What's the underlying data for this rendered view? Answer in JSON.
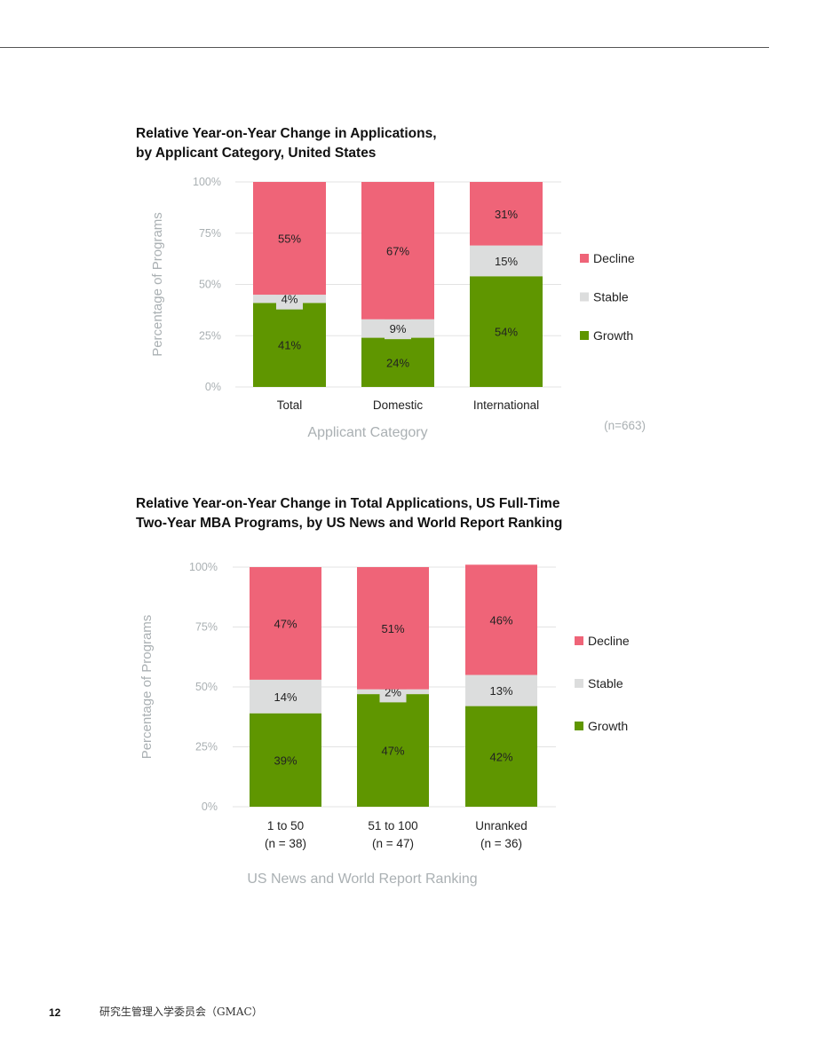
{
  "page": {
    "number": "12",
    "footer_org": "研究生管理入学委员会（GMAC）"
  },
  "colors": {
    "decline": "#EF6478",
    "stable": "#DCDDDD",
    "growth": "#5F9600",
    "grid": "#E3E3E3",
    "axis_text": "#AAB0B3"
  },
  "chart_data": [
    {
      "type": "bar",
      "stacked": true,
      "title_lines": [
        "Relative Year-on-Year Change in Applications,",
        "by Applicant Category, United States"
      ],
      "xlabel": "Applicant Category",
      "ylabel": "Percentage of Programs",
      "ylim": [
        0,
        100
      ],
      "yticks": [
        "0%",
        "25%",
        "50%",
        "75%",
        "100%"
      ],
      "categories": [
        [
          "Total"
        ],
        [
          "Domestic"
        ],
        [
          "International"
        ]
      ],
      "series": [
        {
          "name": "Growth",
          "values": [
            41,
            24,
            54
          ]
        },
        {
          "name": "Stable",
          "values": [
            4,
            9,
            15
          ]
        },
        {
          "name": "Decline",
          "values": [
            55,
            67,
            31
          ]
        }
      ],
      "note": "(n=663)",
      "legend": "right"
    },
    {
      "type": "bar",
      "stacked": true,
      "title_lines": [
        "Relative Year-on-Year Change in Total Applications, US Full-Time",
        "Two-Year MBA Programs, by US News and World Report Ranking"
      ],
      "xlabel": "US News and World Report Ranking",
      "ylabel": "Percentage of Programs",
      "ylim": [
        0,
        100
      ],
      "yticks": [
        "0%",
        "25%",
        "50%",
        "75%",
        "100%"
      ],
      "categories": [
        [
          "1 to 50",
          "(n = 38)"
        ],
        [
          "51 to 100",
          "(n = 47)"
        ],
        [
          "Unranked",
          "(n = 36)"
        ]
      ],
      "series": [
        {
          "name": "Growth",
          "values": [
            39,
            47,
            42
          ]
        },
        {
          "name": "Stable",
          "values": [
            14,
            2,
            13
          ]
        },
        {
          "name": "Decline",
          "values": [
            47,
            51,
            46
          ]
        }
      ],
      "note": "",
      "legend": "right"
    }
  ]
}
